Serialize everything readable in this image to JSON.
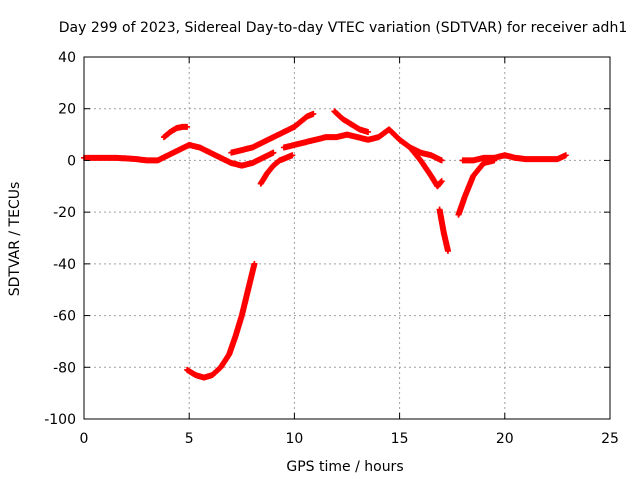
{
  "chart_data": {
    "type": "scatter",
    "title": "Day 299 of 2023, Sidereal Day-to-day VTEC variation (SDTVAR) for receiver adh1",
    "xlabel": "GPS time / hours",
    "ylabel": "SDTVAR / TECUs",
    "xlim": [
      0,
      25
    ],
    "ylim": [
      -100,
      40
    ],
    "xticks": [
      0,
      5,
      10,
      15,
      20,
      25
    ],
    "yticks": [
      -100,
      -80,
      -60,
      -40,
      -20,
      0,
      20,
      40
    ],
    "xtick_labels": [
      "0",
      "5",
      "10",
      "15",
      "20",
      "25"
    ],
    "ytick_labels": [
      "-100",
      "-80",
      "-60",
      "-40",
      "-20",
      "0",
      "20",
      "40"
    ],
    "grid": true,
    "marker": "+",
    "color": "#ff0000",
    "series": [
      {
        "name": "main-trace",
        "x": [
          0,
          0.5,
          1,
          1.5,
          2,
          2.5,
          3,
          3.5,
          4,
          4.5,
          5,
          5.5,
          6,
          6.5,
          7,
          7.5,
          8,
          8.5,
          9
        ],
        "y": [
          1,
          1,
          1,
          1,
          0.8,
          0.5,
          0,
          0,
          2,
          4,
          6,
          5,
          3,
          1,
          -1,
          -2,
          -1,
          1,
          3
        ]
      },
      {
        "name": "upper-band",
        "x": [
          9.5,
          10,
          10.5,
          11,
          11.5,
          12,
          12.5,
          13,
          13.5,
          14,
          14.5,
          15,
          15.5,
          16,
          16.5,
          17
        ],
        "y": [
          5,
          6,
          7,
          8,
          9,
          9,
          10,
          9,
          8,
          9,
          12,
          8,
          5,
          3,
          2,
          0
        ]
      },
      {
        "name": "short-arc-1",
        "x": [
          3.8,
          4.1,
          4.4,
          4.7,
          4.9
        ],
        "y": [
          9,
          11,
          12.5,
          13,
          13
        ]
      },
      {
        "name": "short-arc-2",
        "x": [
          7,
          7.5,
          8,
          8.5,
          9,
          9.5,
          10
        ],
        "y": [
          3,
          4,
          5,
          7,
          9,
          11,
          13
        ]
      },
      {
        "name": "short-arc-3",
        "x": [
          10,
          10.3,
          10.6,
          10.9
        ],
        "y": [
          13,
          15,
          17,
          18
        ]
      },
      {
        "name": "short-arc-4",
        "x": [
          11.9,
          12.3,
          12.7,
          13.1,
          13.5
        ],
        "y": [
          19,
          16,
          14,
          12,
          11
        ]
      },
      {
        "name": "rising-arc",
        "x": [
          8.4,
          8.7,
          9,
          9.3,
          9.6,
          9.9
        ],
        "y": [
          -9,
          -5,
          -2,
          0,
          1,
          2
        ]
      },
      {
        "name": "deep-dip",
        "x": [
          4.9,
          5.3,
          5.7,
          6.1,
          6.5,
          6.9,
          7.2,
          7.5,
          7.8,
          8.1
        ],
        "y": [
          -81,
          -83,
          -84,
          -83,
          -80,
          -75,
          -68,
          -60,
          -50,
          -40
        ]
      },
      {
        "name": "dip-16-17",
        "x": [
          15.5,
          16,
          16.5,
          16.8,
          17
        ],
        "y": [
          5,
          0,
          -6,
          -10,
          -8
        ]
      },
      {
        "name": "drop-17",
        "x": [
          16.9,
          17.1,
          17.3
        ],
        "y": [
          -19,
          -28,
          -35
        ]
      },
      {
        "name": "drop-18",
        "x": [
          17.8,
          18.1,
          18.5,
          19,
          19.5
        ],
        "y": [
          -21,
          -14,
          -6,
          -1,
          0
        ]
      },
      {
        "name": "tail",
        "x": [
          18,
          18.5,
          19,
          19.5,
          20,
          20.5,
          21,
          21.5,
          22,
          22.5,
          22.9
        ],
        "y": [
          0,
          0,
          1,
          1,
          2,
          1,
          0.5,
          0.5,
          0.5,
          0.5,
          2
        ]
      }
    ]
  }
}
